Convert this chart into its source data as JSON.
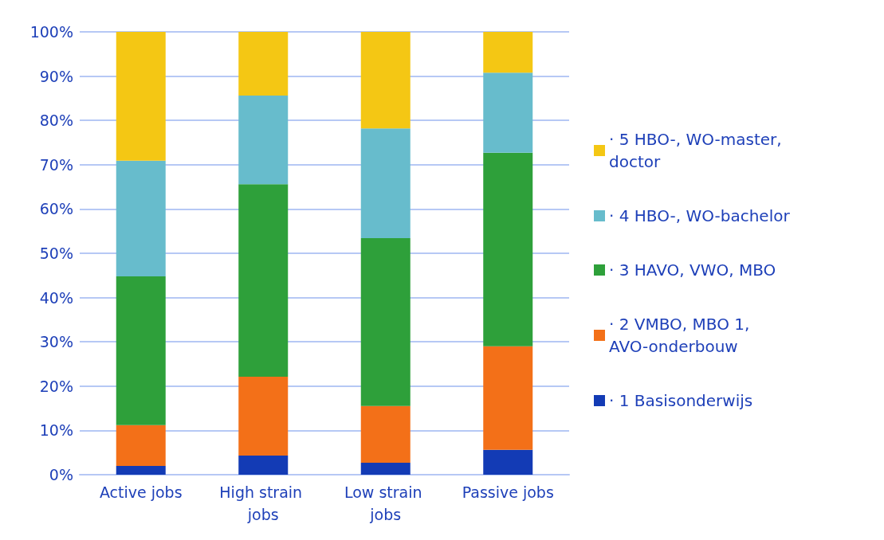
{
  "chart_data": {
    "type": "bar",
    "stacked": true,
    "categories": [
      "Active jobs",
      "High strain jobs",
      "Low strain jobs",
      "Passive jobs"
    ],
    "series": [
      {
        "name": "· 1 Basisonderwijs",
        "color": "#133bb5",
        "values": [
          2.0,
          4.3,
          2.7,
          5.6
        ]
      },
      {
        "name": "· 2 VMBO, MBO 1, AVO-onderbouw",
        "color": "#f37018",
        "values": [
          9.2,
          17.8,
          12.8,
          23.4
        ]
      },
      {
        "name": "· 3 HAVO, VWO, MBO",
        "color": "#2ea03a",
        "values": [
          33.6,
          43.5,
          37.9,
          43.7
        ]
      },
      {
        "name": "· 4 HBO-, WO-bachelor",
        "color": "#67bccc",
        "values": [
          26.1,
          20.0,
          24.8,
          18.1
        ]
      },
      {
        "name": "· 5 HBO-, WO-master, doctor",
        "color": "#f4c714",
        "values": [
          29.1,
          14.4,
          21.8,
          9.2
        ]
      }
    ],
    "ylim": [
      0,
      100
    ],
    "yticks": [
      {
        "value": 0,
        "label": "0%"
      },
      {
        "value": 10,
        "label": "10%"
      },
      {
        "value": 20,
        "label": "20%"
      },
      {
        "value": 30,
        "label": "30%"
      },
      {
        "value": 40,
        "label": "40%"
      },
      {
        "value": 50,
        "label": "50%"
      },
      {
        "value": 60,
        "label": "60%"
      },
      {
        "value": 70,
        "label": "70%"
      },
      {
        "value": 80,
        "label": "80%"
      },
      {
        "value": 90,
        "label": "90%"
      },
      {
        "value": 100,
        "label": "100%"
      }
    ],
    "grid": "y",
    "legend": "right"
  }
}
